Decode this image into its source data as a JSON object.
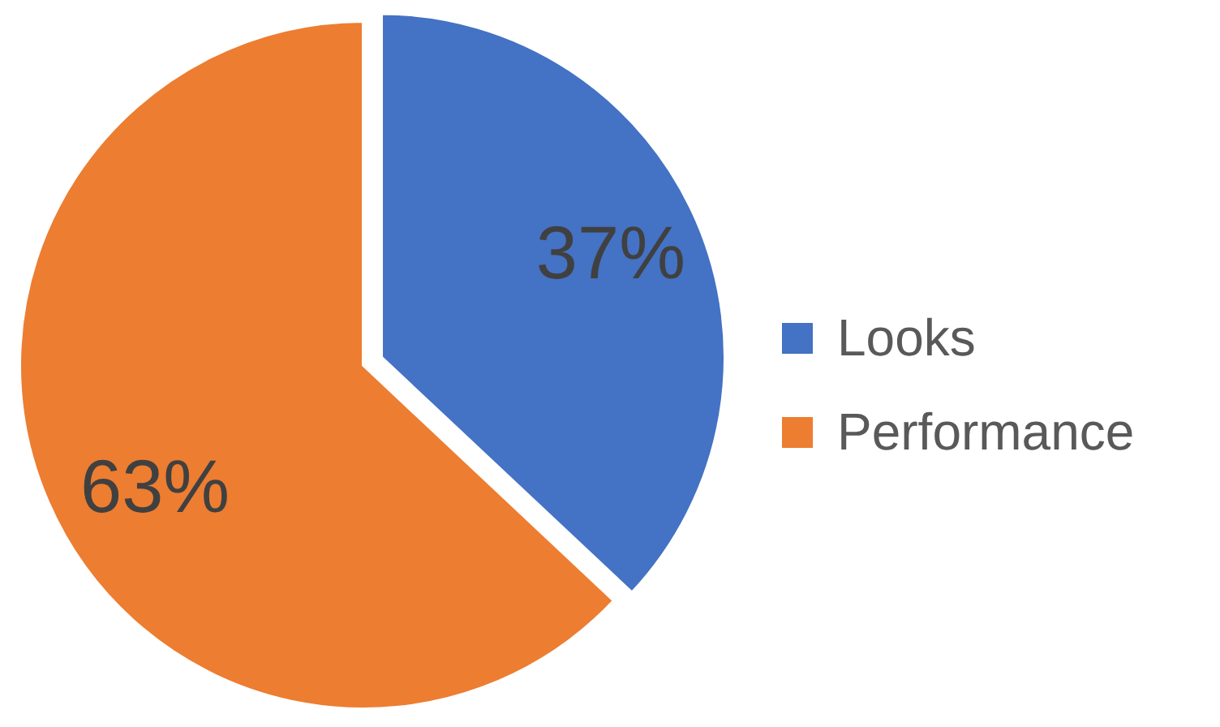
{
  "chart_data": {
    "type": "pie",
    "categories": [
      "Looks",
      "Performance"
    ],
    "values": [
      37,
      63
    ],
    "colors": [
      "#4472c4",
      "#ed7d31"
    ],
    "value_labels": [
      "37%",
      "63%"
    ],
    "legend": "right"
  }
}
